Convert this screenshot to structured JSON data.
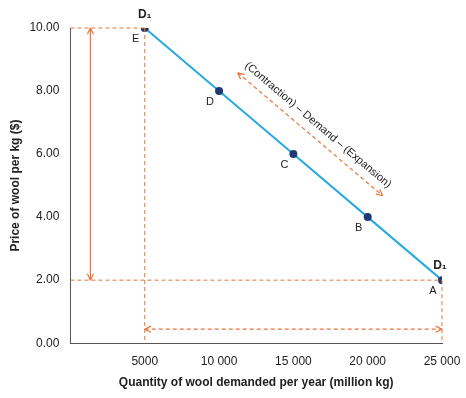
{
  "chart_data": {
    "type": "line",
    "x": [
      25000,
      20000,
      15000,
      10000,
      5000
    ],
    "series": [
      {
        "name": "D₁",
        "color": "#29a9e1",
        "marker": "circle",
        "values": [
          2,
          4,
          6,
          8,
          10
        ]
      }
    ],
    "point_labels": [
      "A",
      "B",
      "C",
      "D",
      "E"
    ],
    "xlabel": "Quantity of wool demanded per year (million kg)",
    "ylabel": "Price of wool per kg ($)",
    "annotations": [
      {
        "text": "(Contraction) – Demand – (Expansion)"
      }
    ],
    "xlim": [
      0,
      25000
    ],
    "xticks": [
      5000,
      {
        "value": 10000,
        "label": "10 000"
      },
      {
        "value": 15000,
        "label": "15 000"
      },
      {
        "value": 20000,
        "label": "20 000"
      },
      {
        "value": 25000,
        "label": "25 000"
      }
    ],
    "ylim": [
      0,
      10
    ],
    "yticks": [
      {
        "value": 0,
        "label": "0.00"
      },
      {
        "value": 2,
        "label": "2.00"
      },
      {
        "value": 4,
        "label": "4.00"
      },
      {
        "value": 6,
        "label": "6.00"
      },
      {
        "value": 8,
        "label": "8.00"
      },
      {
        "value": 10,
        "label": "10.00"
      }
    ],
    "grid": false
  }
}
